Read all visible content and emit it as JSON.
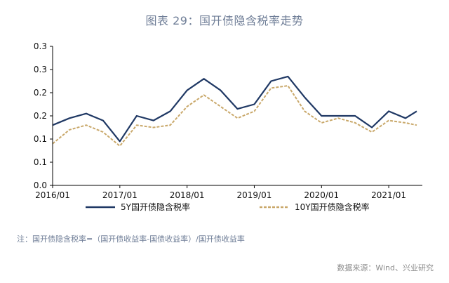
{
  "title": "图表 29：国开债隐含税率走势",
  "note": "注：国开债隐含税率=（国开债收益率-国债收益率）/国开债收益率",
  "source": "数据来源：Wind、兴业研究",
  "colors": {
    "series1": "#1f3864",
    "series2": "#c9a86a",
    "title": "#6f7e97",
    "axis": "#000000"
  },
  "chart_data": {
    "type": "line",
    "title": "图表 29：国开债隐含税率走势",
    "xlabel": "",
    "ylabel": "",
    "x_ticks": [
      "2016/01",
      "2017/01",
      "2018/01",
      "2019/01",
      "2020/01",
      "2021/01"
    ],
    "y_ticks": [
      "0.0",
      "0.1",
      "0.1",
      "0.2",
      "0.2",
      "0.3",
      "0.3"
    ],
    "ylim": [
      0,
      0.3
    ],
    "grid": false,
    "legend_position": "bottom",
    "x_dates": [
      "2016/01",
      "2016/04",
      "2016/07",
      "2016/10",
      "2017/01",
      "2017/04",
      "2017/07",
      "2017/10",
      "2018/01",
      "2018/04",
      "2018/07",
      "2018/10",
      "2019/01",
      "2019/04",
      "2019/07",
      "2019/10",
      "2020/01",
      "2020/04",
      "2020/07",
      "2020/10",
      "2021/01",
      "2021/04",
      "2021/06"
    ],
    "series": [
      {
        "name": "5Y国开债隐含税率",
        "style": "solid",
        "values": [
          0.13,
          0.145,
          0.155,
          0.14,
          0.095,
          0.15,
          0.14,
          0.16,
          0.205,
          0.23,
          0.205,
          0.165,
          0.175,
          0.225,
          0.235,
          0.19,
          0.15,
          0.15,
          0.15,
          0.125,
          0.16,
          0.145,
          0.16
        ]
      },
      {
        "name": "10Y国开债隐含税率",
        "style": "dashed",
        "values": [
          0.09,
          0.12,
          0.13,
          0.115,
          0.085,
          0.13,
          0.125,
          0.13,
          0.17,
          0.195,
          0.17,
          0.145,
          0.16,
          0.21,
          0.215,
          0.16,
          0.135,
          0.145,
          0.135,
          0.115,
          0.14,
          0.135,
          0.13
        ]
      }
    ]
  }
}
